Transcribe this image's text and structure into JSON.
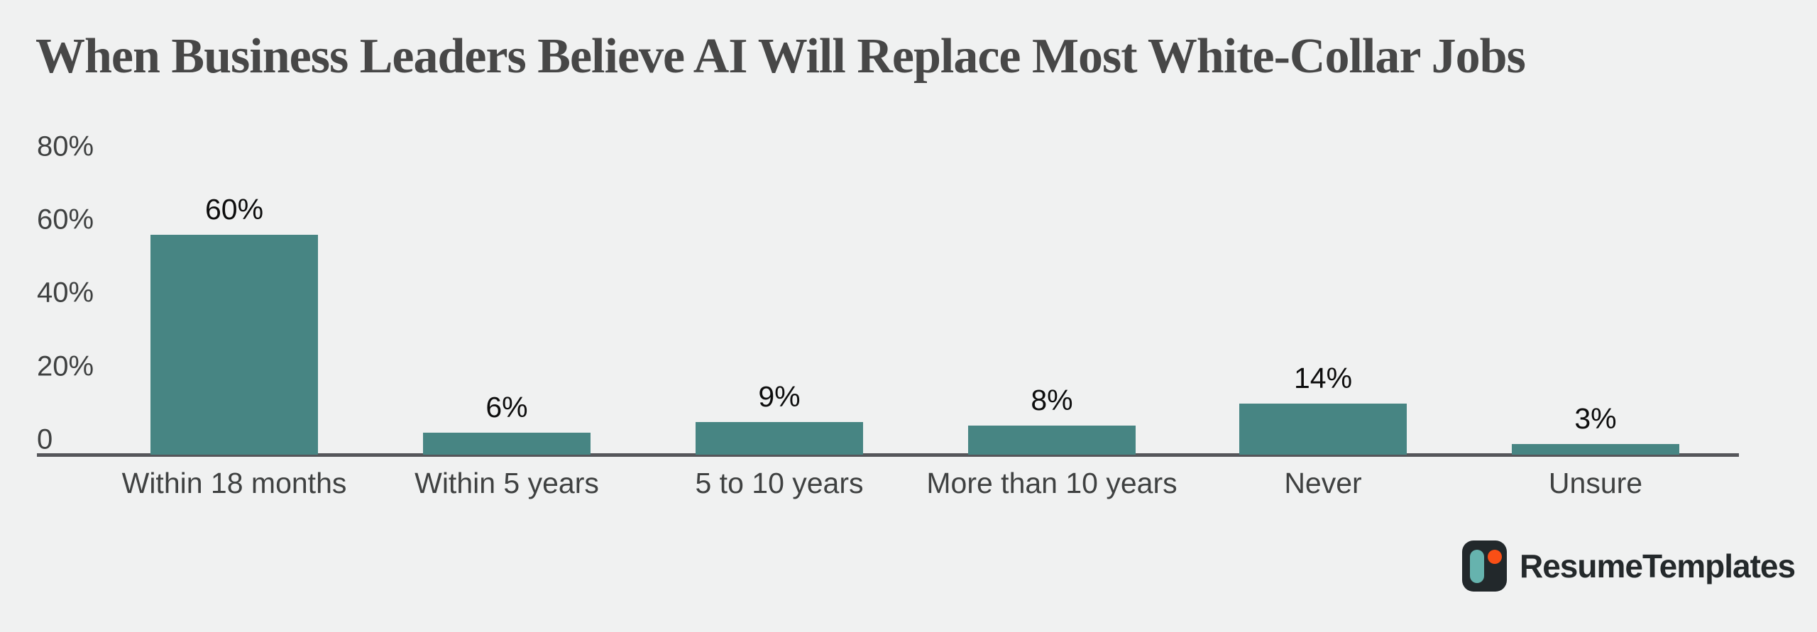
{
  "chart_data": {
    "type": "bar",
    "title": "When Business Leaders Believe AI Will Replace Most White-Collar Jobs",
    "categories": [
      "Within 18 months",
      "Within 5 years",
      "5 to 10 years",
      "More than 10 years",
      "Never",
      "Unsure"
    ],
    "values": [
      60,
      6,
      9,
      8,
      14,
      3
    ],
    "value_labels": [
      "60%",
      "6%",
      "9%",
      "8%",
      "14%",
      "3%"
    ],
    "xlabel": "",
    "ylabel": "",
    "y_axis": {
      "range": [
        0,
        80
      ],
      "ticks": [
        {
          "label": "80%",
          "value": 80
        },
        {
          "label": "60%",
          "value": 60
        },
        {
          "label": "40%",
          "value": 40
        },
        {
          "label": "20%",
          "value": 20
        },
        {
          "label": "0",
          "value": 0
        }
      ]
    },
    "grid": false,
    "legend": "none",
    "colors": {
      "background": "#f0f1f1",
      "bar": "#478583",
      "axis": "#55565a",
      "title_text": "#474747",
      "label_text": "#3f4141",
      "value_text": "#0d0d0d"
    }
  },
  "branding": {
    "name": "ResumeTemplates",
    "logo_icon": "resumetemplates-mark",
    "colors": {
      "tile": "#22282b",
      "stem": "#66b3ae",
      "dot": "#f94f16",
      "text": "#24292b"
    }
  }
}
